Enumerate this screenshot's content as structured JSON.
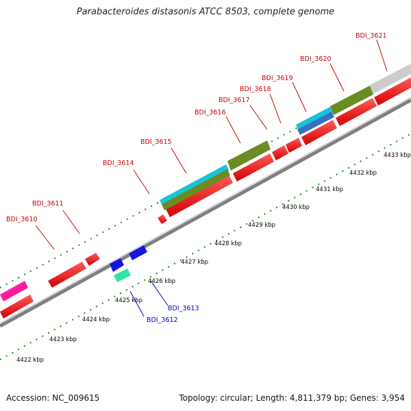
{
  "title": "Parabacteroides distasonis ATCC 8503, complete genome",
  "footer": {
    "accession": "Accession: NC_009615",
    "stats": "Topology: circular; Length: 4,811,379 bp; Genes: 3,954"
  },
  "colors": {
    "forward_gene": "#ff0000",
    "reverse_gene": "#ff0000",
    "gene_cyan": "#19c3d8",
    "gene_olive": "#6a8c22",
    "gene_blue": "#1515e0",
    "gene_teal": "#2ee6a0",
    "gene_magenta": "#ff1ba0",
    "gene_grey": "#cccccc",
    "tick_green": "#1a8a1a",
    "label_red": "#cc0000",
    "label_blue": "#0000cc"
  },
  "scale_labels": [
    "4422 kbp",
    "4423 kbp",
    "4424 kbp",
    "4425 kbp",
    "4426 kbp",
    "4427 kbp",
    "4428 kbp",
    "4429 kbp",
    "4430 kbp",
    "4431 kbp",
    "4432 kbp",
    "4433 kbp"
  ],
  "gene_labels": {
    "red": [
      "BDI_3610",
      "BDI_3611",
      "BDI_3614",
      "BDI_3615",
      "BDI_3616",
      "BDI_3617",
      "BDI_3618",
      "BDI_3619",
      "BDI_3620",
      "BDI_3621"
    ],
    "blue": [
      "BDI_3612",
      "BDI_3613"
    ]
  }
}
